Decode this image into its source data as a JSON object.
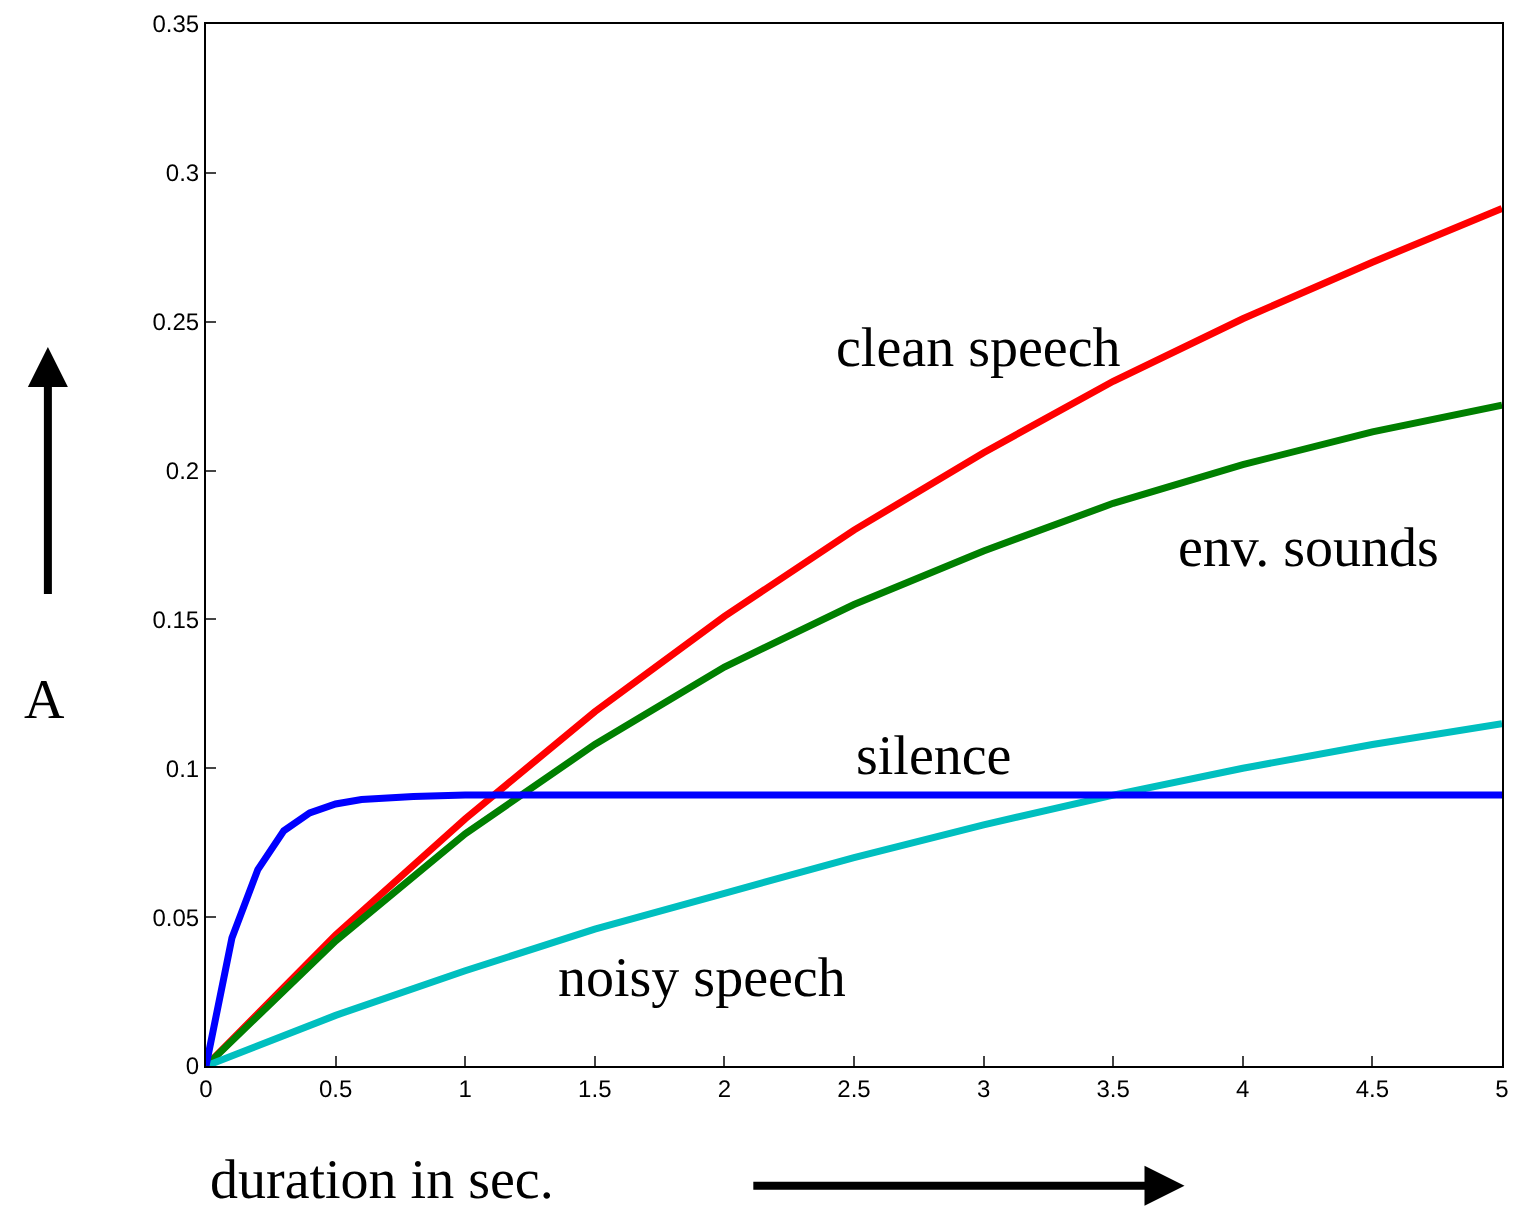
{
  "chart_data": {
    "type": "line",
    "xlabel": "duration in sec.",
    "ylabel": "A",
    "xlim": [
      0,
      5
    ],
    "ylim": [
      0,
      0.35
    ],
    "xticks": [
      0,
      0.5,
      1,
      1.5,
      2,
      2.5,
      3,
      3.5,
      4,
      4.5,
      5
    ],
    "yticks": [
      0,
      0.05,
      0.1,
      0.15,
      0.2,
      0.25,
      0.3,
      0.35
    ],
    "legend": false,
    "marker": "none",
    "line_style": "solid",
    "series": [
      {
        "name": "clean speech",
        "color": "#ff0000",
        "x": [
          0,
          0.5,
          1,
          1.5,
          2,
          2.5,
          3,
          3.5,
          4,
          4.5,
          5
        ],
        "values": [
          0,
          0.044,
          0.083,
          0.119,
          0.151,
          0.18,
          0.206,
          0.23,
          0.251,
          0.27,
          0.288
        ]
      },
      {
        "name": "env. sounds",
        "color": "#007f00",
        "x": [
          0,
          0.5,
          1,
          1.5,
          2,
          2.5,
          3,
          3.5,
          4,
          4.5,
          5
        ],
        "values": [
          0,
          0.042,
          0.078,
          0.108,
          0.134,
          0.155,
          0.173,
          0.189,
          0.202,
          0.213,
          0.222
        ]
      },
      {
        "name": "noisy speech",
        "color": "#00bfbf",
        "x": [
          0,
          0.5,
          1,
          1.5,
          2,
          2.5,
          3,
          3.5,
          4,
          4.5,
          5
        ],
        "values": [
          0,
          0.017,
          0.032,
          0.046,
          0.058,
          0.07,
          0.081,
          0.091,
          0.1,
          0.108,
          0.115
        ]
      },
      {
        "name": "silence",
        "color": "#0000ff",
        "x": [
          0,
          0.1,
          0.2,
          0.3,
          0.4,
          0.5,
          0.6,
          0.8,
          1,
          5
        ],
        "values": [
          0,
          0.043,
          0.066,
          0.079,
          0.085,
          0.088,
          0.0895,
          0.0905,
          0.091,
          0.091
        ]
      }
    ]
  }
}
